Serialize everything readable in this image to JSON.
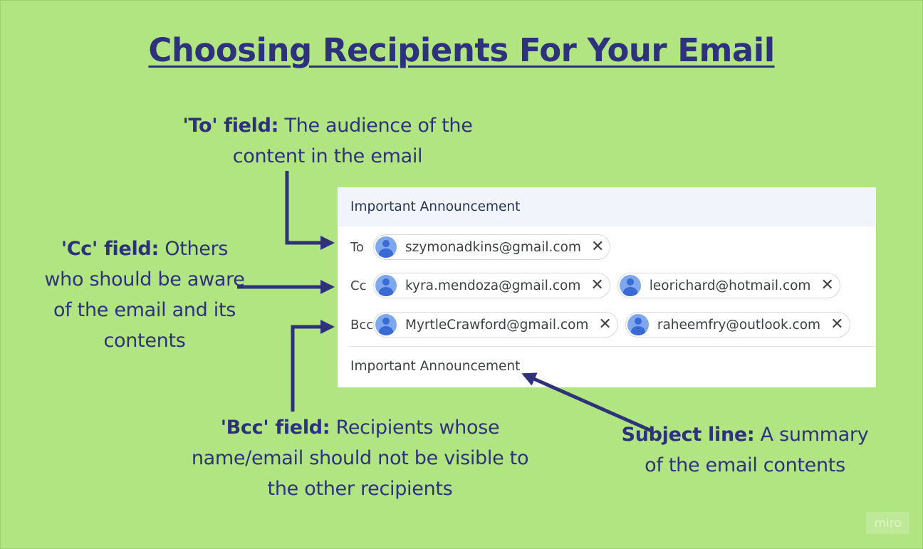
{
  "title": "Choosing Recipients For Your Email",
  "notes": {
    "to": {
      "label": "'To' field:",
      "text": " The audience of the content in the email"
    },
    "cc": {
      "label": "'Cc' field:",
      "text": " Others who should be aware of the email and its contents"
    },
    "bcc": {
      "label": "'Bcc' field:",
      "text": " Recipients whose name/email should not be visible to the other recipients"
    },
    "subject": {
      "label": "Subject line:",
      "text": " A summary of the email contents"
    }
  },
  "compose": {
    "header": "Important Announcement",
    "to": {
      "label": "To",
      "recipients": [
        "szymonadkins@gmail.com"
      ]
    },
    "cc": {
      "label": "Cc",
      "recipients": [
        "kyra.mendoza@gmail.com",
        "leorichard@hotmail.com"
      ]
    },
    "bcc": {
      "label": "Bcc",
      "recipients": [
        "MyrtleCrawford@gmail.com",
        "raheemfry@outlook.com"
      ]
    },
    "subject": "Important Announcement",
    "close_glyph": "✕"
  },
  "watermark": "miro",
  "colors": {
    "background": "#b1e582",
    "text": "#2e327c",
    "arrow": "#2e327c",
    "avatar": "#7ea7ee"
  }
}
